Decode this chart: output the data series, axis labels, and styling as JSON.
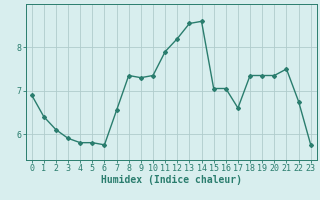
{
  "x": [
    0,
    1,
    2,
    3,
    4,
    5,
    6,
    7,
    8,
    9,
    10,
    11,
    12,
    13,
    14,
    15,
    16,
    17,
    18,
    19,
    20,
    21,
    22,
    23
  ],
  "y": [
    6.9,
    6.4,
    6.1,
    5.9,
    5.8,
    5.8,
    5.75,
    6.55,
    7.35,
    7.3,
    7.35,
    7.9,
    8.2,
    8.55,
    8.6,
    7.05,
    7.05,
    6.6,
    7.35,
    7.35,
    7.35,
    7.5,
    6.75,
    5.75
  ],
  "line_color": "#2a7d6e",
  "marker": "D",
  "marker_size": 2,
  "bg_color": "#d8eeee",
  "grid_color": "#b0cccc",
  "xlabel": "Humidex (Indice chaleur)",
  "ylabel": "",
  "xlim": [
    -0.5,
    23.5
  ],
  "ylim": [
    5.4,
    9.0
  ],
  "yticks": [
    6,
    7,
    8
  ],
  "xticks": [
    0,
    1,
    2,
    3,
    4,
    5,
    6,
    7,
    8,
    9,
    10,
    11,
    12,
    13,
    14,
    15,
    16,
    17,
    18,
    19,
    20,
    21,
    22,
    23
  ],
  "xlabel_fontsize": 7,
  "tick_fontsize": 6,
  "axis_color": "#2a7d6e",
  "line_width": 1.0
}
